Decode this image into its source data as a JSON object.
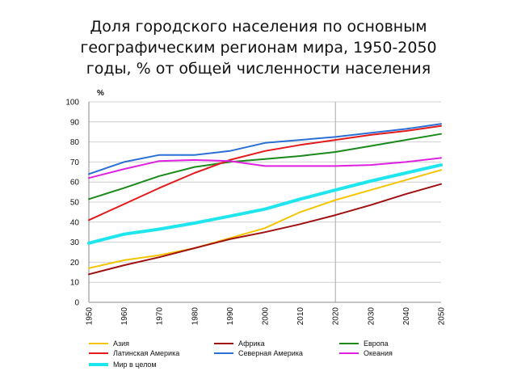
{
  "page": {
    "title_lines": [
      "Доля городского населения по основным",
      "географическим регионам мира, 1950-2050",
      "годы, % от общей численности населения"
    ]
  },
  "chart_data": {
    "type": "line",
    "title": "Доля городского населения по основным географическим регионам мира, 1950-2050 годы, % от общей численности населения",
    "ylabel": "%",
    "xlabel": "",
    "ylim": [
      0,
      100
    ],
    "xlim": [
      1950,
      2050
    ],
    "yticks": [
      0,
      10,
      20,
      30,
      40,
      50,
      60,
      70,
      80,
      90,
      100
    ],
    "xticks": [
      1950,
      1960,
      1970,
      1980,
      1990,
      2000,
      2010,
      2020,
      2030,
      2040,
      2050
    ],
    "x": [
      1950,
      1960,
      1970,
      1980,
      1990,
      2000,
      2010,
      2020,
      2030,
      2040,
      2050
    ],
    "grid": true,
    "projection_line_x": 2020,
    "legend_position": "bottom",
    "series": [
      {
        "name": "Азия",
        "color": "#f5c400",
        "width": 2,
        "values": [
          17,
          21,
          23.5,
          27,
          32,
          37,
          45,
          51,
          56,
          61,
          66
        ]
      },
      {
        "name": "Африка",
        "color": "#a01010",
        "width": 2,
        "values": [
          14,
          18.5,
          22.5,
          27,
          31.5,
          35,
          39,
          43.5,
          48.5,
          54,
          59
        ]
      },
      {
        "name": "Европа",
        "color": "#1a8a1a",
        "width": 2,
        "values": [
          51.5,
          57,
          63,
          67.5,
          70,
          71.5,
          73,
          75,
          78,
          81,
          84
        ]
      },
      {
        "name": "Латинская Америка",
        "color": "#e41a1a",
        "width": 2,
        "values": [
          41,
          49,
          57,
          64.5,
          71,
          75.5,
          78.5,
          81,
          83.5,
          85.5,
          88
        ]
      },
      {
        "name": "Северная Америка",
        "color": "#2a6fd6",
        "width": 2,
        "values": [
          64,
          70,
          73.5,
          73.5,
          75.5,
          79.5,
          81,
          82.5,
          84.5,
          86.5,
          89
        ]
      },
      {
        "name": "Океания",
        "color": "#e020e0",
        "width": 2,
        "values": [
          62,
          66.5,
          70.5,
          71,
          70.5,
          68,
          68,
          68,
          68.5,
          70,
          72
        ]
      },
      {
        "name": "Мир в целом",
        "color": "#1fe5ee",
        "width": 4,
        "values": [
          29.5,
          34,
          36.5,
          39.5,
          43,
          46.5,
          51.5,
          56,
          60.5,
          64.5,
          68.5
        ]
      }
    ]
  }
}
